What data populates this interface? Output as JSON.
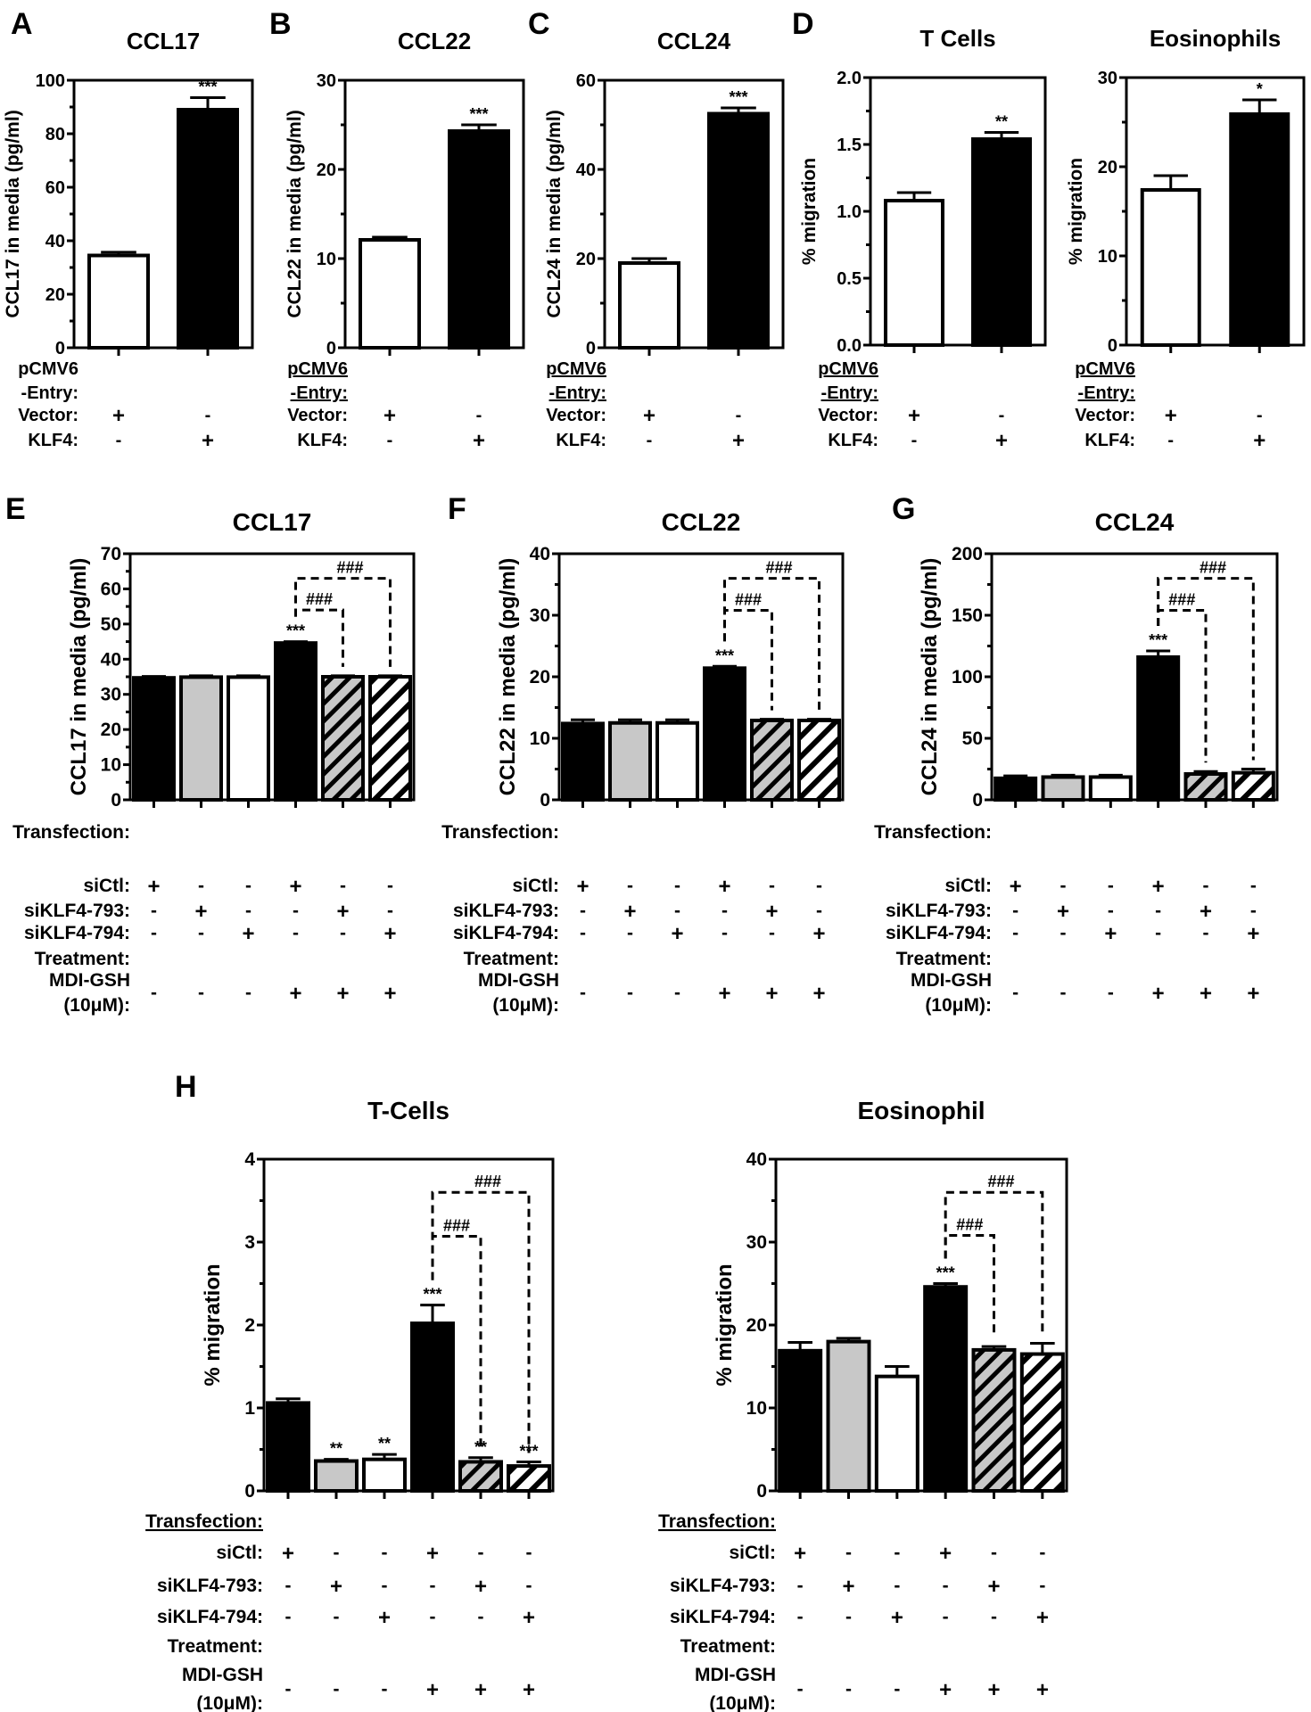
{
  "figure": {
    "panel_letters": [
      "A",
      "B",
      "C",
      "D",
      "E",
      "F",
      "G",
      "H"
    ]
  },
  "chart_data": [
    {
      "id": "A",
      "type": "bar",
      "title": "CCL17",
      "ylabel": "CCL17 in media (pg/ml)",
      "ylim": [
        0,
        100
      ],
      "yticks": [
        "0",
        "20",
        "40",
        "60",
        "80",
        "100"
      ],
      "categories": [
        "Vector",
        "KLF4"
      ],
      "values": [
        34.5,
        89
      ],
      "errors": [
        1.2,
        4.5
      ],
      "fills": [
        "white",
        "black"
      ],
      "significance": [
        "",
        "***"
      ],
      "condition_header": [
        "pCMV6",
        "-Entry:"
      ],
      "conditions": [
        {
          "label": "Vector:",
          "marks": [
            "+",
            "-"
          ]
        },
        {
          "label": "KLF4:",
          "marks": [
            "-",
            "+"
          ]
        }
      ]
    },
    {
      "id": "B",
      "type": "bar",
      "title": "CCL22",
      "ylabel": "CCL22 in media (pg/ml)",
      "ylim": [
        0,
        30
      ],
      "yticks": [
        "0",
        "10",
        "20",
        "30"
      ],
      "categories": [
        "Vector",
        "KLF4"
      ],
      "values": [
        12.1,
        24.3
      ],
      "errors": [
        0.3,
        0.7
      ],
      "fills": [
        "white",
        "black"
      ],
      "significance": [
        "",
        "***"
      ],
      "condition_header": [
        "pCMV6",
        "-Entry:"
      ],
      "conditions": [
        {
          "label": "Vector:",
          "marks": [
            "+",
            "-"
          ]
        },
        {
          "label": "KLF4:",
          "marks": [
            "-",
            "+"
          ]
        }
      ]
    },
    {
      "id": "C",
      "type": "bar",
      "title": "CCL24",
      "ylabel": "CCL24 in media (pg/ml)",
      "ylim": [
        0,
        60
      ],
      "yticks": [
        "0",
        "20",
        "40",
        "60"
      ],
      "categories": [
        "Vector",
        "KLF4"
      ],
      "values": [
        19,
        52.5
      ],
      "errors": [
        1.0,
        1.3
      ],
      "fills": [
        "white",
        "black"
      ],
      "significance": [
        "",
        "***"
      ],
      "condition_header": [
        "pCMV6",
        "-Entry:"
      ],
      "conditions": [
        {
          "label": "Vector:",
          "marks": [
            "+",
            "-"
          ]
        },
        {
          "label": "KLF4:",
          "marks": [
            "-",
            "+"
          ]
        }
      ]
    },
    {
      "id": "D1",
      "type": "bar",
      "title": "T Cells",
      "ylabel": "% migration",
      "ylim": [
        0,
        2.0
      ],
      "yticks": [
        "0.0",
        "0.5",
        "1.0",
        "1.5",
        "2.0"
      ],
      "categories": [
        "Vector",
        "KLF4"
      ],
      "values": [
        1.08,
        1.54
      ],
      "errors": [
        0.06,
        0.05
      ],
      "fills": [
        "white",
        "black"
      ],
      "significance": [
        "",
        "**"
      ],
      "condition_header": [
        "pCMV6",
        "-Entry:"
      ],
      "conditions": [
        {
          "label": "Vector:",
          "marks": [
            "+",
            "-"
          ]
        },
        {
          "label": "KLF4:",
          "marks": [
            "-",
            "+"
          ]
        }
      ]
    },
    {
      "id": "D2",
      "type": "bar",
      "title": "Eosinophils",
      "ylabel": "% migration",
      "ylim": [
        0,
        30
      ],
      "yticks": [
        "0",
        "10",
        "20",
        "30"
      ],
      "categories": [
        "Vector",
        "KLF4"
      ],
      "values": [
        17.4,
        25.9
      ],
      "errors": [
        1.6,
        1.6
      ],
      "fills": [
        "white",
        "black"
      ],
      "significance": [
        "",
        "*"
      ],
      "condition_header": [
        "pCMV6",
        "-Entry:"
      ],
      "conditions": [
        {
          "label": "Vector:",
          "marks": [
            "+",
            "-"
          ]
        },
        {
          "label": "KLF4:",
          "marks": [
            "-",
            "+"
          ]
        }
      ]
    },
    {
      "id": "E",
      "type": "bar",
      "title": "CCL17",
      "ylabel": "CCL17 in media (pg/ml)",
      "ylim": [
        0,
        70
      ],
      "yticks": [
        "0",
        "10",
        "20",
        "30",
        "40",
        "50",
        "60",
        "70"
      ],
      "categories": [
        "siCtl",
        "siKLF4-793",
        "siKLF4-794",
        "siCtl+MDI-GSH",
        "siKLF4-793+MDI-GSH",
        "siKLF4-794+MDI-GSH"
      ],
      "values": [
        34.7,
        34.9,
        34.9,
        44.6,
        35.0,
        35.0
      ],
      "errors": [
        0.4,
        0.4,
        0.4,
        0.4,
        0.3,
        0.3
      ],
      "fills": [
        "black",
        "gray",
        "white",
        "black",
        "gray-hatch",
        "white-hatch"
      ],
      "significance": [
        "",
        "",
        "",
        "***",
        "",
        ""
      ],
      "brackets": [
        {
          "from": 3,
          "to": 4,
          "label": "###",
          "level": 54
        },
        {
          "from": 3,
          "to": 5,
          "label": "###",
          "level": 63
        }
      ],
      "condition_header": [
        "Transfection:"
      ],
      "conditions": [
        {
          "label": "siCtl:",
          "marks": [
            "+",
            "-",
            "-",
            "+",
            "-",
            "-"
          ]
        },
        {
          "label": "siKLF4-793:",
          "marks": [
            "-",
            "+",
            "-",
            "-",
            "+",
            "-"
          ]
        },
        {
          "label": "siKLF4-794:",
          "marks": [
            "-",
            "-",
            "+",
            "-",
            "-",
            "+"
          ]
        }
      ],
      "treatment_header": "Treatment:",
      "treatment": {
        "label": [
          "MDI-GSH",
          "(10μM):"
        ],
        "marks": [
          "-",
          "-",
          "-",
          "+",
          "+",
          "+"
        ]
      }
    },
    {
      "id": "F",
      "type": "bar",
      "title": "CCL22",
      "ylabel": "CCL22 in media (pg/ml)",
      "ylim": [
        0,
        40
      ],
      "yticks": [
        "0",
        "10",
        "20",
        "30",
        "40"
      ],
      "categories": [
        "siCtl",
        "siKLF4-793",
        "siKLF4-794",
        "siCtl+MDI-GSH",
        "siKLF4-793+MDI-GSH",
        "siKLF4-794+MDI-GSH"
      ],
      "values": [
        12.4,
        12.5,
        12.5,
        21.4,
        12.9,
        12.9
      ],
      "errors": [
        0.6,
        0.5,
        0.5,
        0.3,
        0.2,
        0.2
      ],
      "fills": [
        "black",
        "gray",
        "white",
        "black",
        "gray-hatch",
        "white-hatch"
      ],
      "significance": [
        "",
        "",
        "",
        "***",
        "",
        ""
      ],
      "brackets": [
        {
          "from": 3,
          "to": 4,
          "label": "###",
          "level": 30.8
        },
        {
          "from": 3,
          "to": 5,
          "label": "###",
          "level": 36
        }
      ],
      "condition_header": [
        "Transfection:"
      ],
      "conditions": [
        {
          "label": "siCtl:",
          "marks": [
            "+",
            "-",
            "-",
            "+",
            "-",
            "-"
          ]
        },
        {
          "label": "siKLF4-793:",
          "marks": [
            "-",
            "+",
            "-",
            "-",
            "+",
            "-"
          ]
        },
        {
          "label": "siKLF4-794:",
          "marks": [
            "-",
            "-",
            "+",
            "-",
            "-",
            "+"
          ]
        }
      ],
      "treatment_header": "Treatment:",
      "treatment": {
        "label": [
          "MDI-GSH",
          "(10μM):"
        ],
        "marks": [
          "-",
          "-",
          "-",
          "+",
          "+",
          "+"
        ]
      }
    },
    {
      "id": "G",
      "type": "bar",
      "title": "CCL24",
      "ylabel": "CCL24 in media (pg/ml)",
      "ylim": [
        0,
        200
      ],
      "yticks": [
        "0",
        "50",
        "100",
        "150",
        "200"
      ],
      "categories": [
        "siCtl",
        "siKLF4-793",
        "siKLF4-794",
        "siCtl+MDI-GSH",
        "siKLF4-793+MDI-GSH",
        "siKLF4-794+MDI-GSH"
      ],
      "values": [
        17.5,
        18.5,
        18.5,
        116,
        21,
        22
      ],
      "errors": [
        2,
        1.5,
        1.5,
        5,
        2,
        3
      ],
      "fills": [
        "black",
        "gray",
        "white",
        "black",
        "gray-hatch",
        "white-hatch"
      ],
      "significance": [
        "",
        "",
        "",
        "***",
        "",
        ""
      ],
      "brackets": [
        {
          "from": 3,
          "to": 4,
          "label": "###",
          "level": 154
        },
        {
          "from": 3,
          "to": 5,
          "label": "###",
          "level": 180
        }
      ],
      "condition_header": [
        "Transfection:"
      ],
      "conditions": [
        {
          "label": "siCtl:",
          "marks": [
            "+",
            "-",
            "-",
            "+",
            "-",
            "-"
          ]
        },
        {
          "label": "siKLF4-793:",
          "marks": [
            "-",
            "+",
            "-",
            "-",
            "+",
            "-"
          ]
        },
        {
          "label": "siKLF4-794:",
          "marks": [
            "-",
            "-",
            "+",
            "-",
            "-",
            "+"
          ]
        }
      ],
      "treatment_header": "Treatment:",
      "treatment": {
        "label": [
          "MDI-GSH",
          "(10μM):"
        ],
        "marks": [
          "-",
          "-",
          "-",
          "+",
          "+",
          "+"
        ]
      }
    },
    {
      "id": "H1",
      "type": "bar",
      "title": "T-Cells",
      "ylabel": "% migration",
      "ylim": [
        0,
        4
      ],
      "yticks": [
        "0",
        "1",
        "2",
        "3",
        "4"
      ],
      "categories": [
        "siCtl",
        "siKLF4-793",
        "siKLF4-794",
        "siCtl+MDI-GSH",
        "siKLF4-793+MDI-GSH",
        "siKLF4-794+MDI-GSH"
      ],
      "values": [
        1.06,
        0.36,
        0.38,
        2.02,
        0.35,
        0.3
      ],
      "errors": [
        0.05,
        0.02,
        0.06,
        0.22,
        0.05,
        0.05
      ],
      "fills": [
        "black",
        "gray",
        "white",
        "black",
        "gray-hatch",
        "white-hatch"
      ],
      "significance": [
        "",
        "**",
        "**",
        "***",
        "**",
        "***"
      ],
      "brackets": [
        {
          "from": 3,
          "to": 4,
          "label": "###",
          "level": 3.07
        },
        {
          "from": 3,
          "to": 5,
          "label": "###",
          "level": 3.6
        }
      ],
      "condition_header": [
        "Transfection:"
      ],
      "conditions": [
        {
          "label": "siCtl:",
          "marks": [
            "+",
            "-",
            "-",
            "+",
            "-",
            "-"
          ]
        },
        {
          "label": "siKLF4-793:",
          "marks": [
            "-",
            "+",
            "-",
            "-",
            "+",
            "-"
          ]
        },
        {
          "label": "siKLF4-794:",
          "marks": [
            "-",
            "-",
            "+",
            "-",
            "-",
            "+"
          ]
        }
      ],
      "treatment_header": "Treatment:",
      "treatment": {
        "label": [
          "MDI-GSH",
          "(10μM):"
        ],
        "marks": [
          "-",
          "-",
          "-",
          "+",
          "+",
          "+"
        ]
      }
    },
    {
      "id": "H2",
      "type": "bar",
      "title": "Eosinophil",
      "ylabel": "% migration",
      "ylim": [
        0,
        40
      ],
      "yticks": [
        "0",
        "10",
        "20",
        "30",
        "40"
      ],
      "categories": [
        "siCtl",
        "siKLF4-793",
        "siKLF4-794",
        "siCtl+MDI-GSH",
        "siKLF4-793+MDI-GSH",
        "siKLF4-794+MDI-GSH"
      ],
      "values": [
        16.9,
        18,
        13.8,
        24.6,
        17,
        16.5
      ],
      "errors": [
        1.0,
        0.4,
        1.2,
        0.4,
        0.4,
        1.3
      ],
      "fills": [
        "black",
        "gray",
        "white",
        "black",
        "gray-hatch",
        "white-hatch"
      ],
      "significance": [
        "",
        "",
        "",
        "***",
        "",
        ""
      ],
      "brackets": [
        {
          "from": 3,
          "to": 4,
          "label": "###",
          "level": 30.8
        },
        {
          "from": 3,
          "to": 5,
          "label": "###",
          "level": 36
        }
      ],
      "condition_header": [
        "Transfection:"
      ],
      "conditions": [
        {
          "label": "siCtl:",
          "marks": [
            "+",
            "-",
            "-",
            "+",
            "-",
            "-"
          ]
        },
        {
          "label": "siKLF4-793:",
          "marks": [
            "-",
            "+",
            "-",
            "-",
            "+",
            "-"
          ]
        },
        {
          "label": "siKLF4-794:",
          "marks": [
            "-",
            "-",
            "+",
            "-",
            "-",
            "+"
          ]
        }
      ],
      "treatment_header": "Treatment:",
      "treatment": {
        "label": [
          "MDI-GSH",
          "(10μM):"
        ],
        "marks": [
          "-",
          "-",
          "-",
          "+",
          "+",
          "+"
        ]
      }
    }
  ]
}
